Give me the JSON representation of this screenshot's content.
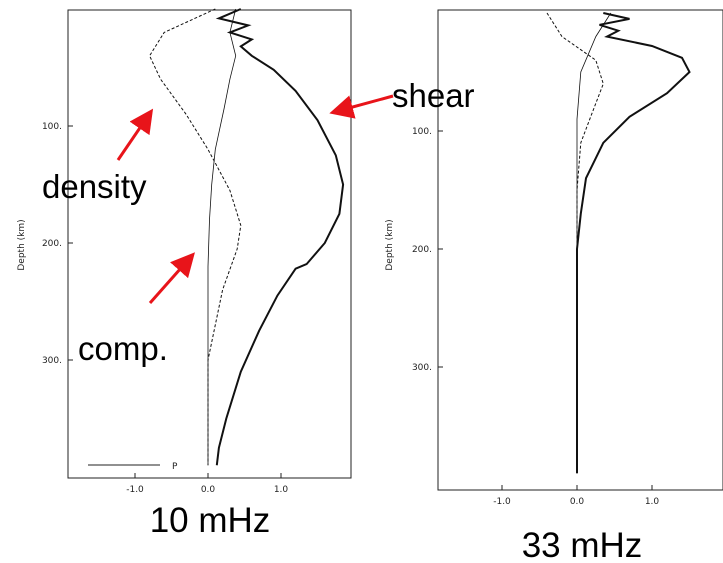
{
  "chart_data": [
    {
      "type": "line",
      "caption": "10 mHz",
      "ylabel": "Depth (km)",
      "ylim": [
        0,
        390
      ],
      "xlim": [
        -1.85,
        2.0
      ],
      "x_ticks": [
        "-1.0",
        "0.0",
        "1.0"
      ],
      "y_ticks": [
        "100.",
        "200.",
        "300."
      ],
      "legend_label": "P",
      "annotations": [
        "shear",
        "density",
        "comp."
      ],
      "series": [
        {
          "name": "shear",
          "style": "solid-thick",
          "points": [
            [
              0.45,
              0
            ],
            [
              0.15,
              8
            ],
            [
              0.55,
              14
            ],
            [
              0.3,
              20
            ],
            [
              0.6,
              26
            ],
            [
              0.45,
              32
            ],
            [
              0.6,
              40
            ],
            [
              0.9,
              52
            ],
            [
              1.2,
              70
            ],
            [
              1.5,
              95
            ],
            [
              1.75,
              125
            ],
            [
              1.85,
              150
            ],
            [
              1.8,
              175
            ],
            [
              1.6,
              200
            ],
            [
              1.35,
              218
            ],
            [
              1.2,
              222
            ],
            [
              0.95,
              245
            ],
            [
              0.7,
              275
            ],
            [
              0.45,
              310
            ],
            [
              0.25,
              350
            ],
            [
              0.15,
              375
            ],
            [
              0.12,
              390
            ]
          ]
        },
        {
          "name": "comp.",
          "style": "solid-thin",
          "points": [
            [
              0.38,
              0
            ],
            [
              0.3,
              20
            ],
            [
              0.38,
              40
            ],
            [
              0.3,
              60
            ],
            [
              0.22,
              85
            ],
            [
              0.1,
              120
            ],
            [
              0.05,
              150
            ],
            [
              0.02,
              180
            ],
            [
              0.0,
              220
            ],
            [
              0.0,
              300
            ],
            [
              0.0,
              390
            ]
          ]
        },
        {
          "name": "density",
          "style": "dashed",
          "points": [
            [
              0.1,
              0
            ],
            [
              -0.6,
              20
            ],
            [
              -0.8,
              40
            ],
            [
              -0.65,
              60
            ],
            [
              -0.3,
              90
            ],
            [
              0.0,
              120
            ],
            [
              0.3,
              155
            ],
            [
              0.45,
              185
            ],
            [
              0.4,
              205
            ],
            [
              0.2,
              240
            ],
            [
              0.0,
              300
            ],
            [
              0.0,
              390
            ]
          ]
        }
      ]
    },
    {
      "type": "line",
      "caption": "33 mHz",
      "ylabel": "Depth (km)",
      "ylim": [
        0,
        390
      ],
      "xlim": [
        -1.85,
        2.0
      ],
      "x_ticks": [
        "-1.0",
        "0.0",
        "1.0"
      ],
      "y_ticks": [
        "100.",
        "200.",
        "300."
      ],
      "series": [
        {
          "name": "shear",
          "style": "solid-thick",
          "points": [
            [
              0.35,
              0
            ],
            [
              0.7,
              5
            ],
            [
              0.3,
              10
            ],
            [
              0.55,
              15
            ],
            [
              0.4,
              20
            ],
            [
              1.0,
              28
            ],
            [
              1.4,
              38
            ],
            [
              1.5,
              50
            ],
            [
              1.2,
              68
            ],
            [
              0.7,
              88
            ],
            [
              0.35,
              110
            ],
            [
              0.12,
              140
            ],
            [
              0.05,
              170
            ],
            [
              0.0,
              200
            ],
            [
              0.0,
              390
            ]
          ]
        },
        {
          "name": "comp.",
          "style": "solid-thin",
          "points": [
            [
              0.45,
              0
            ],
            [
              0.25,
              20
            ],
            [
              0.05,
              50
            ],
            [
              0.0,
              90
            ],
            [
              0.0,
              390
            ]
          ]
        },
        {
          "name": "density",
          "style": "dashed",
          "points": [
            [
              -0.4,
              0
            ],
            [
              -0.2,
              20
            ],
            [
              0.25,
              40
            ],
            [
              0.35,
              60
            ],
            [
              0.2,
              85
            ],
            [
              0.05,
              110
            ],
            [
              0.0,
              150
            ],
            [
              0.0,
              390
            ]
          ]
        }
      ]
    }
  ]
}
